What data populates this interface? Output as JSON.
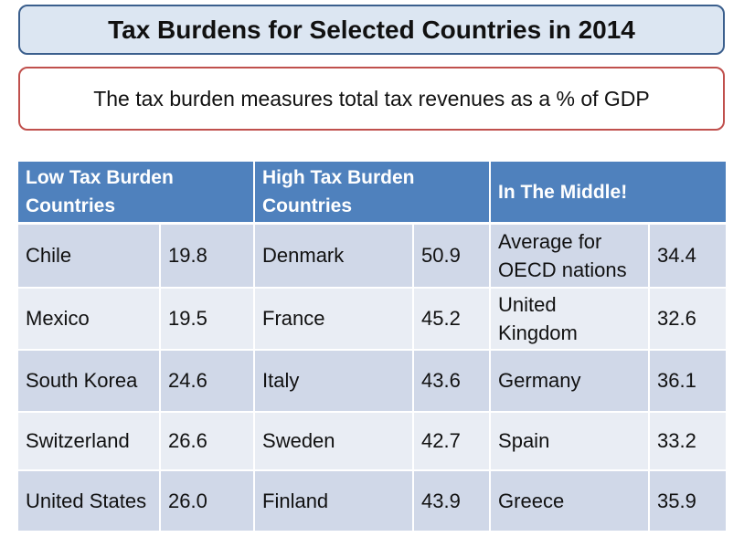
{
  "header": {
    "title": "Tax Burdens for Selected Countries in 2014",
    "subtitle": "The tax burden measures total tax revenues as a % of GDP"
  },
  "table": {
    "headers": [
      "Low Tax Burden Countries",
      "High Tax Burden Countries",
      "In The Middle!"
    ],
    "rows": [
      [
        "Chile",
        "19.8",
        "Denmark",
        "50.9",
        "Average for OECD nations",
        "34.4"
      ],
      [
        "Mexico",
        "19.5",
        "France",
        "45.2",
        "United Kingdom",
        "32.6"
      ],
      [
        "South Korea",
        "24.6",
        "Italy",
        "43.6",
        "Germany",
        "36.1"
      ],
      [
        "Switzerland",
        "26.6",
        "Sweden",
        "42.7",
        "Spain",
        "33.2"
      ],
      [
        "United States",
        "26.0",
        "Finland",
        "43.9",
        "Greece",
        "35.9"
      ]
    ]
  }
}
